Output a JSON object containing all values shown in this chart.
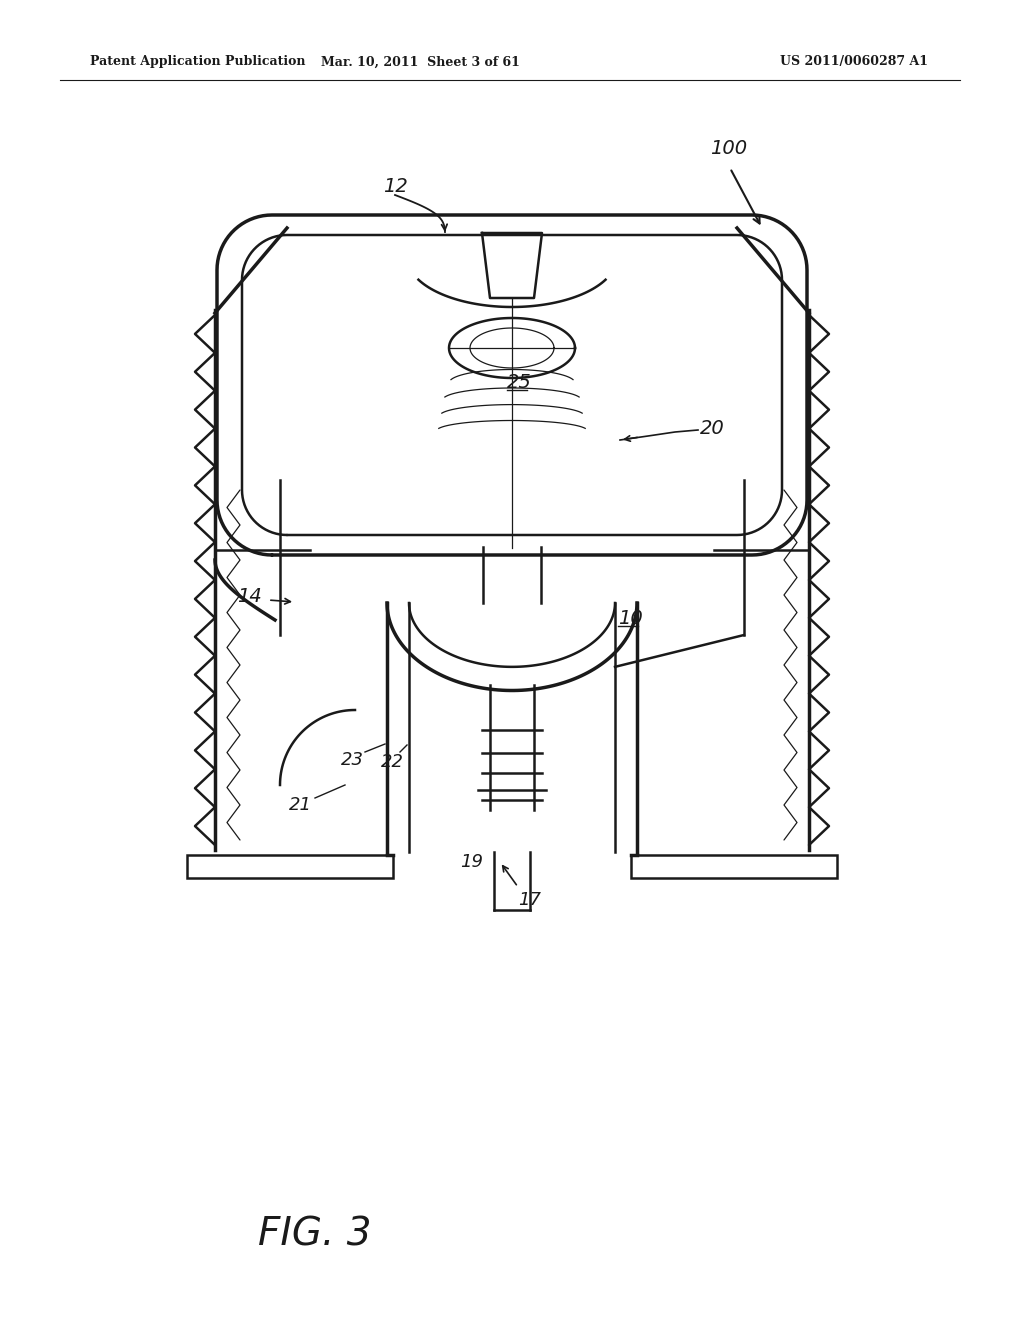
{
  "bg_color": "#ffffff",
  "line_color": "#1a1a1a",
  "header_left": "Patent Application Publication",
  "header_mid": "Mar. 10, 2011  Sheet 3 of 61",
  "header_right": "US 2011/0060287 A1",
  "fig_label": "FIG. 3"
}
